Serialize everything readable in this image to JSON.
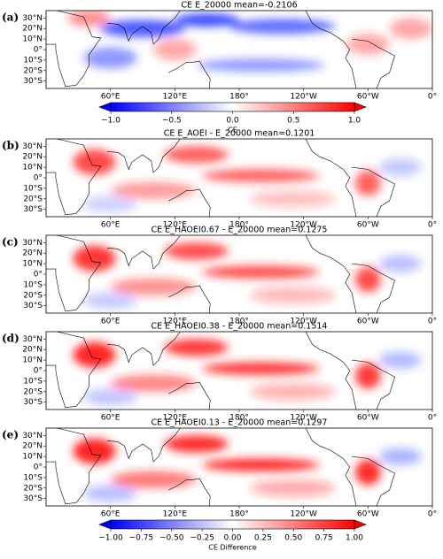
{
  "panels": [
    {
      "label": "(a)",
      "title": "CE E_20000 mean=-0.2106"
    },
    {
      "label": "(b)",
      "title": "CE E_AOEI - E_20000 mean=0.1201"
    },
    {
      "label": "(c)",
      "title": "CE E_HAOEI0.67 - E_20000 mean=0.1275"
    },
    {
      "label": "(d)",
      "title": "CE E_HAOEI0.38 - E_20000 mean=0.1514"
    },
    {
      "label": "(e)",
      "title": "CE E_HAOEI0.13 - E_20000 mean=0.1297"
    }
  ],
  "lon_lim": [
    0,
    360
  ],
  "lat_lim": [
    -37,
    37
  ],
  "lon_ticks": [
    {
      "value": 60,
      "label": "60°E"
    },
    {
      "value": 120,
      "label": "120°E"
    },
    {
      "value": 180,
      "label": "180°"
    },
    {
      "value": 240,
      "label": "120°W"
    },
    {
      "value": 300,
      "label": "60°W"
    },
    {
      "value": 360,
      "label": "0°"
    }
  ],
  "lat_ticks": [
    {
      "value": 30,
      "label": "30°N"
    },
    {
      "value": 20,
      "label": "20°N"
    },
    {
      "value": 10,
      "label": "10°N"
    },
    {
      "value": 0,
      "label": "0°"
    },
    {
      "value": -10,
      "label": "10°S"
    },
    {
      "value": -20,
      "label": "20°S"
    },
    {
      "value": -30,
      "label": "30°S"
    }
  ],
  "colorbars": [
    {
      "panel": 0,
      "label": "CE",
      "lim": [
        -1,
        1
      ],
      "ticks": [
        {
          "value": -1,
          "label": "−1.0"
        },
        {
          "value": -0.5,
          "label": "−0.5"
        },
        {
          "value": 0,
          "label": "0.0"
        },
        0.5,
        {
          "value": 1,
          "label": "1.0"
        }
      ]
    },
    {
      "panel": 4,
      "label": "CE Difference",
      "lim": [
        -1,
        1
      ],
      "ticks": [
        {
          "value": -1,
          "label": "−1.00"
        },
        {
          "value": -0.75,
          "label": "−0.75"
        },
        {
          "value": -0.5,
          "label": "−0.50"
        },
        {
          "value": -0.25,
          "label": "−0.25"
        },
        {
          "value": 0,
          "label": "0.00"
        },
        0.25,
        {
          "value": 0.5,
          "label": "0.50"
        },
        0.75,
        {
          "value": 1,
          "label": "1.00"
        }
      ]
    }
  ]
}
